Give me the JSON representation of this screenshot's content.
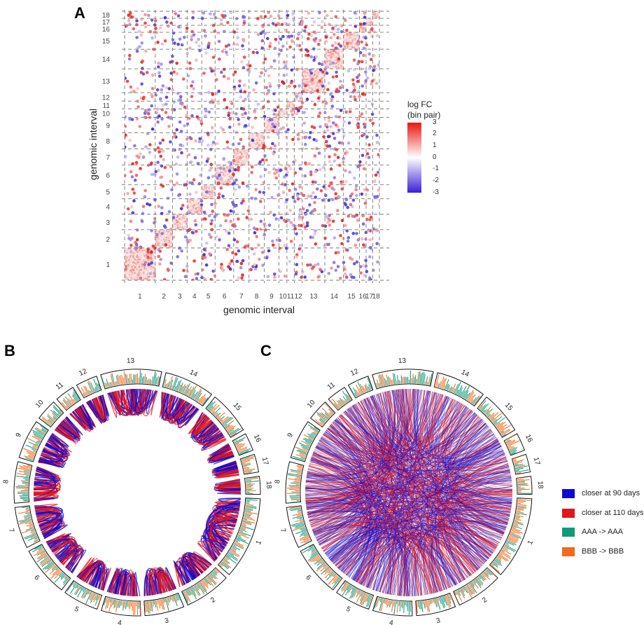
{
  "panels": {
    "a_label": "A",
    "b_label": "B",
    "c_label": "C"
  },
  "chart_data": [
    {
      "type": "heatmap",
      "panel": "A",
      "xlabel": "genomic interval",
      "ylabel": "genomic interval",
      "categories": [
        "1",
        "2",
        "3",
        "4",
        "5",
        "6",
        "7",
        "8",
        "9",
        "10",
        "11",
        "12",
        "13",
        "14",
        "15",
        "16",
        "17",
        "18"
      ],
      "interval_sizes": [
        46,
        26,
        22,
        22,
        20,
        28,
        23,
        23,
        22,
        12,
        11,
        12,
        34,
        28,
        24,
        10,
        10,
        10
      ],
      "colorbar": {
        "title_line1": "log FC",
        "title_line2": "(bin pair)",
        "range": [
          -3,
          3
        ],
        "ticks": [
          "3",
          "2",
          "1",
          "0",
          "-1",
          "-2",
          "-3"
        ],
        "low_color": "#3a1fd6",
        "mid_color": "#ffffff",
        "high_color": "#e8170f"
      }
    },
    {
      "type": "chord",
      "panel": "B",
      "sectors": [
        "1",
        "2",
        "3",
        "4",
        "5",
        "6",
        "7",
        "8",
        "9",
        "10",
        "11",
        "12",
        "13",
        "14",
        "15",
        "16",
        "17",
        "18"
      ],
      "style": "within-chromosome links",
      "series": [
        {
          "name": "closer at 90 days",
          "color": "#0a0ad6"
        },
        {
          "name": "closer at 110 days",
          "color": "#e3161c"
        }
      ]
    },
    {
      "type": "chord",
      "panel": "C",
      "sectors": [
        "1",
        "2",
        "3",
        "4",
        "5",
        "6",
        "7",
        "8",
        "9",
        "10",
        "11",
        "12",
        "13",
        "14",
        "15",
        "16",
        "17",
        "18"
      ],
      "style": "between-chromosome links",
      "series": [
        {
          "name": "closer at 90 days",
          "color": "#0a0ad6"
        },
        {
          "name": "closer at 110 days",
          "color": "#e3161c"
        }
      ]
    }
  ],
  "legend": {
    "items": [
      {
        "label": "closer at 90 days",
        "color": "#0a0ad6"
      },
      {
        "label": "closer at 110 days",
        "color": "#e3161c"
      },
      {
        "label": "AAA -> AAA",
        "color": "#119a7a"
      },
      {
        "label": "BBB -> BBB",
        "color": "#f26b1d"
      }
    ]
  }
}
